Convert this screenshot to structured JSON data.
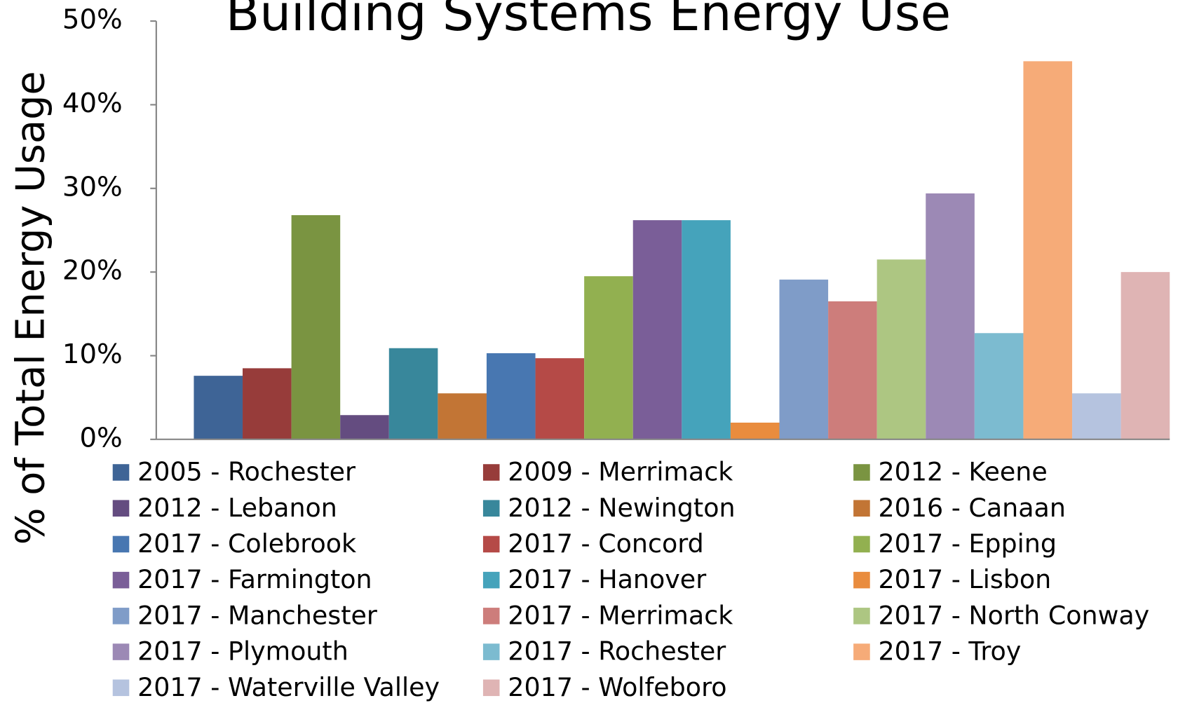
{
  "chart_data": {
    "type": "bar",
    "title": "Building Systems Energy Use",
    "y_label": "% of Total Energy Usage",
    "categories": [
      null
    ],
    "ylim": [
      0,
      50
    ],
    "yticks": [
      {
        "value": 0,
        "label": "0%"
      },
      {
        "value": 10,
        "label": "10%"
      },
      {
        "value": 20,
        "label": "20%"
      },
      {
        "value": 30,
        "label": "30%"
      },
      {
        "value": 40,
        "label": "40%"
      },
      {
        "value": 50,
        "label": "50%"
      }
    ],
    "grid": false,
    "legend": "bottom",
    "series": [
      {
        "name": "2005 - Rochester",
        "color": "#3e6496",
        "values": [
          7.6
        ]
      },
      {
        "name": "2009 - Merrimack",
        "color": "#973c3a",
        "values": [
          8.5
        ]
      },
      {
        "name": "2012 - Keene",
        "color": "#7a9441",
        "values": [
          26.8
        ]
      },
      {
        "name": "2012 - Lebanon",
        "color": "#644c80",
        "values": [
          2.9
        ]
      },
      {
        "name": "2012 - Newington",
        "color": "#38879b",
        "values": [
          10.9
        ]
      },
      {
        "name": "2016 - Canaan",
        "color": "#c27535",
        "values": [
          5.5
        ]
      },
      {
        "name": "2017 - Colebrook",
        "color": "#4877b1",
        "values": [
          10.3
        ]
      },
      {
        "name": "2017 - Concord",
        "color": "#b54a47",
        "values": [
          9.7
        ]
      },
      {
        "name": "2017 - Epping",
        "color": "#92b050",
        "values": [
          19.5
        ]
      },
      {
        "name": "2017 - Farmington",
        "color": "#7a5e98",
        "values": [
          26.2
        ]
      },
      {
        "name": "2017 - Hanover",
        "color": "#45a3bb",
        "values": [
          26.2
        ]
      },
      {
        "name": "2017 - Lisbon",
        "color": "#e98c3e",
        "values": [
          2.0
        ]
      },
      {
        "name": "2017 - Manchester",
        "color": "#7f9cc8",
        "values": [
          19.1
        ]
      },
      {
        "name": "2017 - Merrimack",
        "color": "#cd7d7b",
        "values": [
          16.5
        ]
      },
      {
        "name": "2017 - North Conway",
        "color": "#adc682",
        "values": [
          21.5
        ]
      },
      {
        "name": "2017 - Plymouth",
        "color": "#9c89b5",
        "values": [
          29.4
        ]
      },
      {
        "name": "2017 - Rochester",
        "color": "#7cbbd0",
        "values": [
          12.7
        ]
      },
      {
        "name": "2017 - Troy",
        "color": "#f6ab78",
        "values": [
          45.2
        ]
      },
      {
        "name": "2017 - Waterville Valley",
        "color": "#b5c3df",
        "values": [
          5.5
        ]
      },
      {
        "name": "2017 - Wolfeboro",
        "color": "#dfb4b4",
        "values": [
          20.0
        ]
      }
    ]
  }
}
